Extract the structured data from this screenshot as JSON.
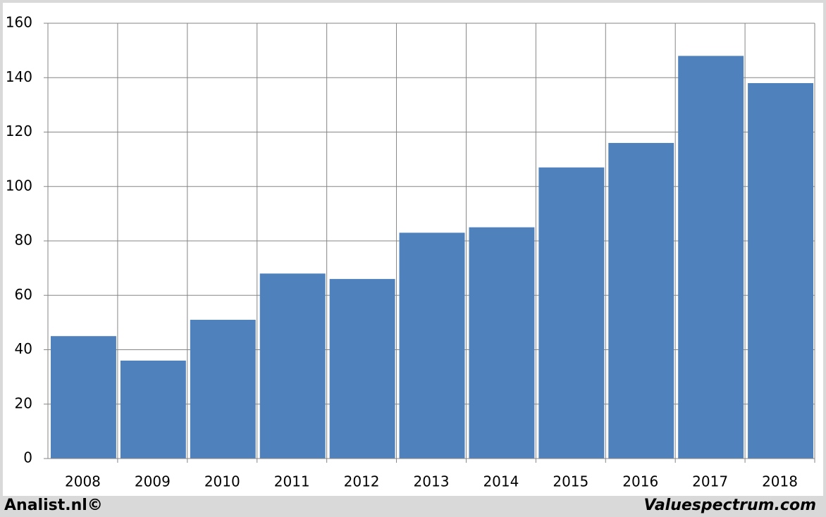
{
  "chart_data": {
    "type": "bar",
    "categories": [
      "2008",
      "2009",
      "2010",
      "2011",
      "2012",
      "2013",
      "2014",
      "2015",
      "2016",
      "2017",
      "2018"
    ],
    "values": [
      45,
      36,
      51,
      68,
      66,
      83,
      85,
      107,
      116,
      148,
      138
    ],
    "color": "#4f81bd",
    "ylim": [
      0,
      160
    ],
    "yticks": [
      0,
      20,
      40,
      60,
      80,
      100,
      120,
      140,
      160
    ],
    "grid": true,
    "source": "Analist.nl©",
    "credit": "Valuespectrum.com"
  }
}
